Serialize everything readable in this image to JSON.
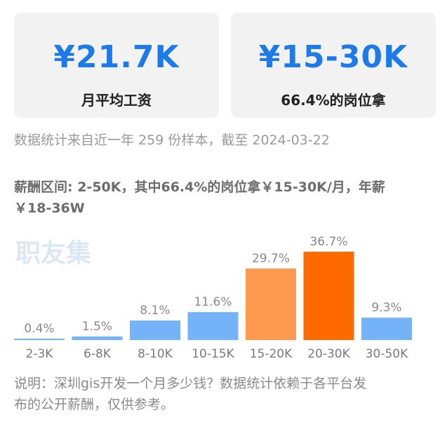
{
  "cards": [
    {
      "value": "¥21.7K",
      "label": "月平均工资"
    },
    {
      "value": "¥15-30K",
      "label": "66.4%的岗位拿"
    }
  ],
  "sample_note": "数据统计来自近一年 259 份样本，截至 2024-03-22",
  "range_text_line1": "薪酬区间: 2-50K，其中66.4%的岗位拿￥15-30K/月，年薪",
  "range_text_line2": "￥18-36W",
  "watermark": "职友集",
  "footer_note_line1": "说明：深圳gis开发一个月多少钱？数据统计依赖于各平台发",
  "footer_note_line2": "布的公开薪酬，仅供参考。",
  "colors": {
    "accent": "#1e7ae8",
    "bar_blue": "#74b3f7",
    "bar_orange_light": "#fd9a4f",
    "bar_orange_dark": "#ff6a00"
  },
  "chart_data": {
    "type": "bar",
    "categories": [
      "2-3K",
      "6-8K",
      "8-10K",
      "10-15K",
      "15-20K",
      "20-30K",
      "30-50K"
    ],
    "values": [
      0.4,
      1.5,
      8.1,
      11.6,
      29.7,
      36.7,
      9.3
    ],
    "value_labels": [
      "0.4%",
      "1.5%",
      "8.1%",
      "11.6%",
      "29.7%",
      "36.7%",
      "9.3%"
    ],
    "bar_colors": [
      "#74b3f7",
      "#74b3f7",
      "#74b3f7",
      "#74b3f7",
      "#fd9a4f",
      "#ff6a00",
      "#74b3f7"
    ],
    "ylim": [
      0,
      36.7
    ]
  }
}
